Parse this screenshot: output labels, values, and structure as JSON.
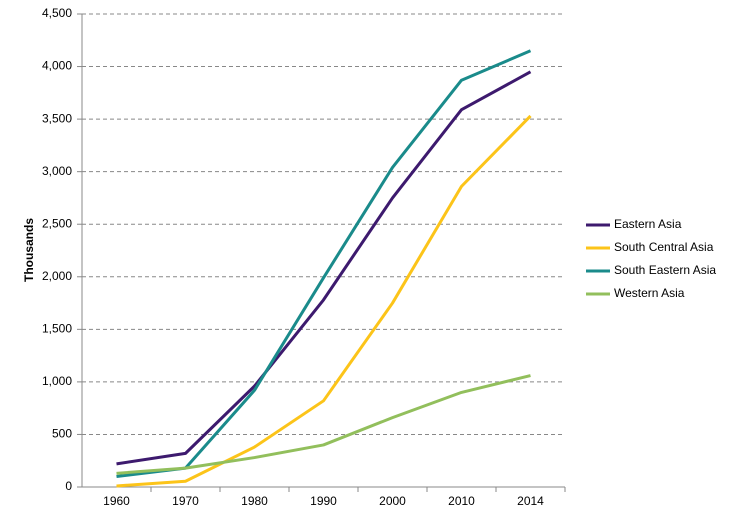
{
  "chart_data": {
    "type": "line",
    "y_label": "Thousands",
    "categories": [
      "1960",
      "1970",
      "1980",
      "1990",
      "2000",
      "2010",
      "2014"
    ],
    "series": [
      {
        "name": "Eastern Asia",
        "color": "#3d1a6e",
        "values": [
          220,
          320,
          960,
          1780,
          2750,
          3590,
          3950
        ]
      },
      {
        "name": "South Central Asia",
        "color": "#fcc419",
        "values": [
          10,
          55,
          380,
          820,
          1750,
          2860,
          3530
        ]
      },
      {
        "name": "South Eastern Asia",
        "color": "#1a8b8b",
        "values": [
          100,
          180,
          920,
          1990,
          3040,
          3870,
          4150
        ]
      },
      {
        "name": "Western Asia",
        "color": "#92bf5c",
        "values": [
          130,
          180,
          280,
          400,
          660,
          900,
          1060
        ]
      }
    ],
    "ylim": [
      0,
      4500
    ],
    "yticks": [
      0,
      500,
      {
        "value": 1000,
        "label": "1,000"
      },
      {
        "value": 1500,
        "label": "1,500"
      },
      {
        "value": 2000,
        "label": "2,000"
      },
      {
        "value": 2500,
        "label": "2,500"
      },
      {
        "value": 3000,
        "label": "3,000"
      },
      {
        "value": 3500,
        "label": "3,500"
      },
      {
        "value": 4000,
        "label": "4,000"
      },
      {
        "value": 4500,
        "label": "4,500"
      }
    ],
    "grid": true
  }
}
